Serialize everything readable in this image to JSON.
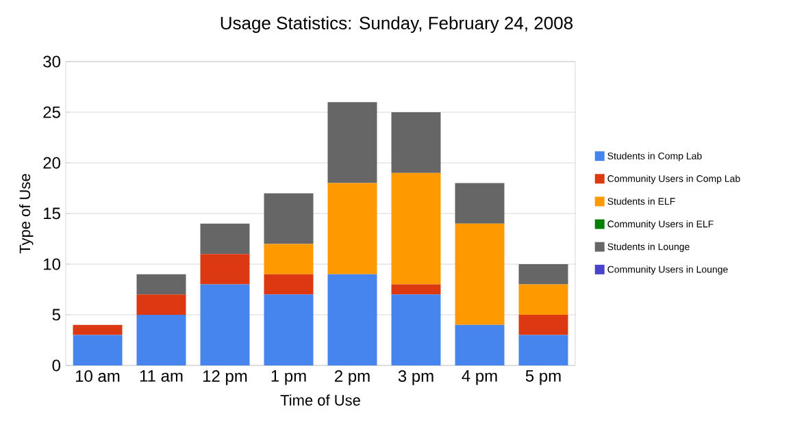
{
  "chart_data": {
    "type": "bar",
    "stacked": true,
    "title": "Usage Statistics: Sunday, February 24, 2008",
    "xlabel": "Time of Use",
    "ylabel": "Type of Use",
    "categories": [
      "10 am",
      "11 am",
      "12 pm",
      "1 pm",
      "2 pm",
      "3 pm",
      "4 pm",
      "5 pm"
    ],
    "series": [
      {
        "name": "Students in Comp Lab",
        "color": "#4684ee",
        "values": [
          3,
          5,
          8,
          7,
          9,
          7,
          4,
          3
        ]
      },
      {
        "name": "Community Users in Comp Lab",
        "color": "#dc3912",
        "values": [
          1,
          2,
          3,
          2,
          0,
          1,
          0,
          2
        ]
      },
      {
        "name": "Students in ELF",
        "color": "#ff9900",
        "values": [
          0,
          0,
          0,
          3,
          9,
          11,
          10,
          3
        ]
      },
      {
        "name": "Community Users in ELF",
        "color": "#008000",
        "values": [
          0,
          0,
          0,
          0,
          0,
          0,
          0,
          0
        ]
      },
      {
        "name": "Students in Lounge",
        "color": "#666666",
        "values": [
          0,
          2,
          3,
          5,
          8,
          6,
          4,
          2
        ]
      },
      {
        "name": "Community Users in Lounge",
        "color": "#4942cc",
        "values": [
          0,
          0,
          0,
          0,
          0,
          0,
          0,
          0
        ]
      }
    ],
    "ylim": [
      0,
      30
    ],
    "yticks": [
      0,
      5,
      10,
      15,
      20,
      25,
      30
    ],
    "grid": "y",
    "legend": "right"
  }
}
